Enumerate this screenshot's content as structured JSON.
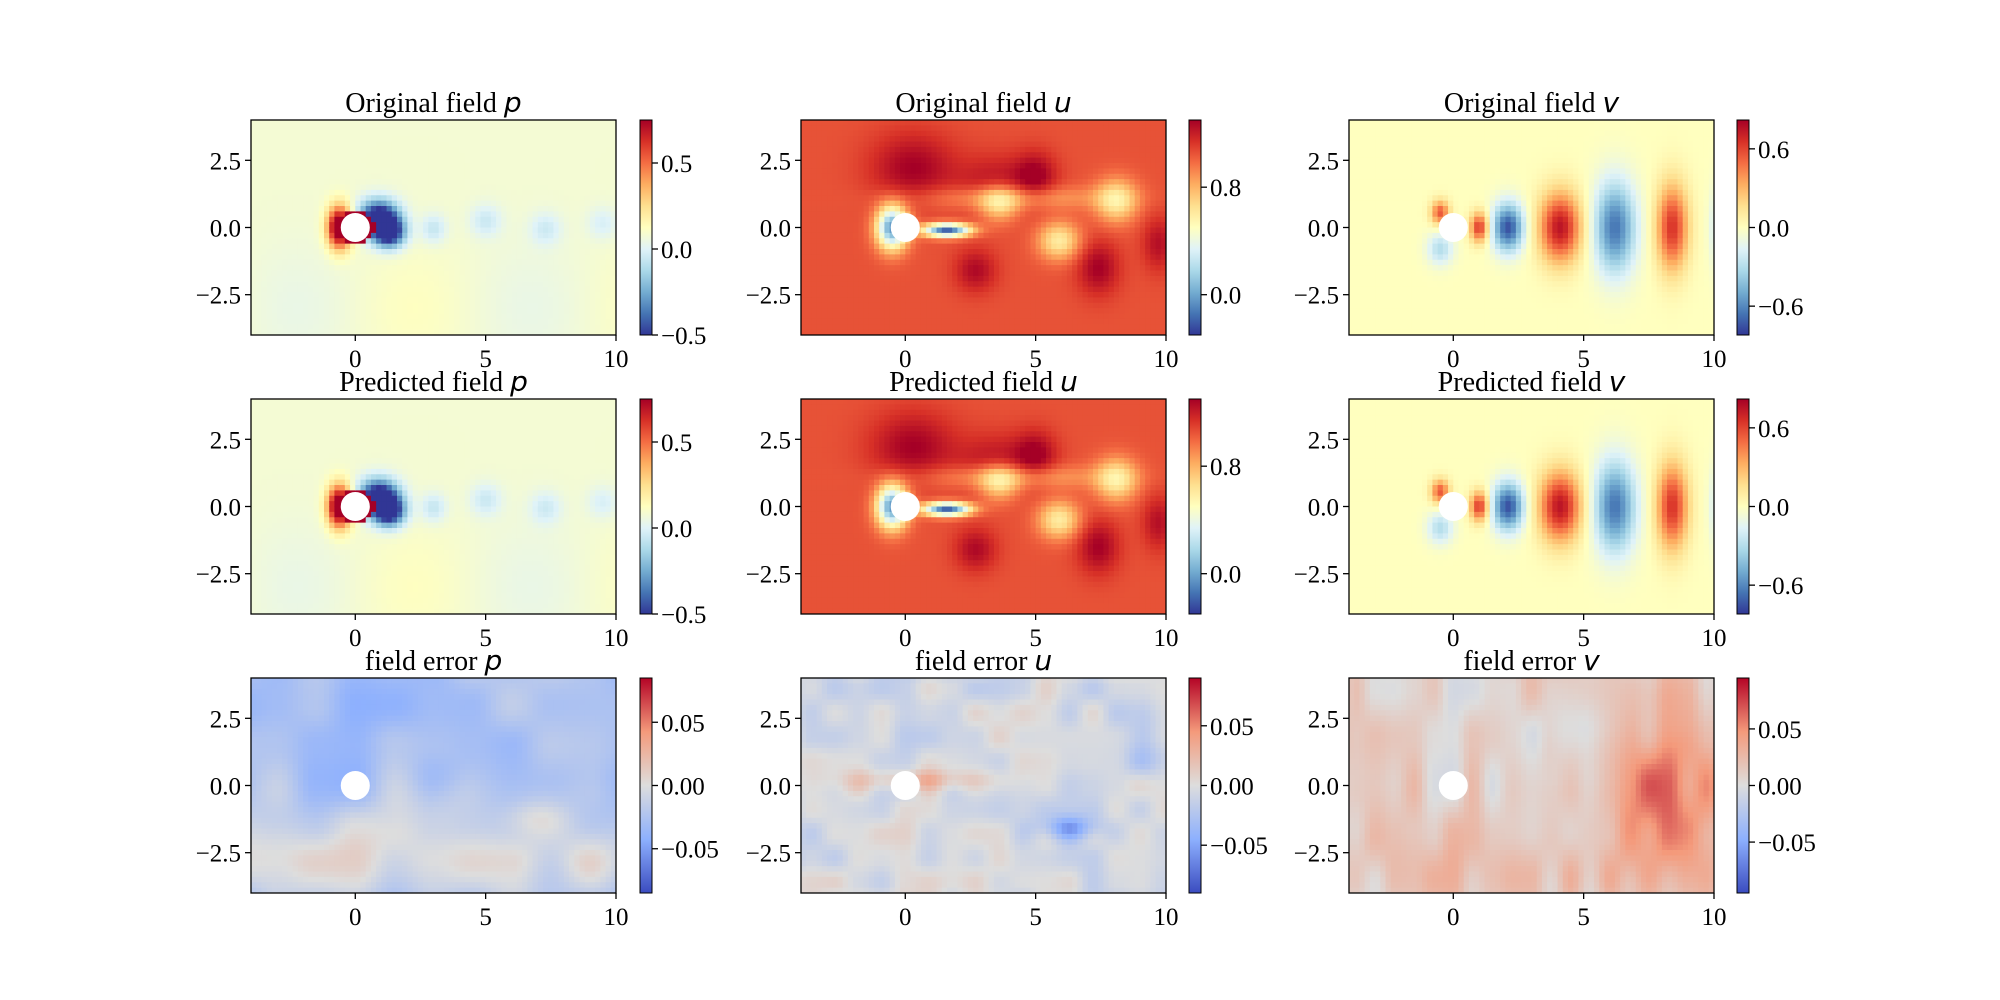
{
  "chart_data": [
    {
      "type": "heatmap",
      "field": "p",
      "title_prefix": "Original field",
      "variable": "p",
      "colormap": "RdYlBu_r",
      "xlim": [
        -4,
        10
      ],
      "ylim": [
        -4,
        4
      ],
      "xticks": [
        "0",
        "5",
        "10"
      ],
      "yticks": [
        "2.5",
        "0.0",
        "−2.5"
      ],
      "clim": [
        -0.5,
        0.75
      ],
      "colorbar_ticks": [
        {
          "v": 0.5,
          "label": "0.5"
        },
        {
          "v": 0.0,
          "label": "0.0"
        },
        {
          "v": -0.5,
          "label": "−0.5"
        }
      ]
    },
    {
      "type": "heatmap",
      "field": "u",
      "title_prefix": "Original field",
      "variable": "u",
      "colormap": "RdYlBu_r",
      "xlim": [
        -4,
        10
      ],
      "ylim": [
        -4,
        4
      ],
      "xticks": [
        "0",
        "5",
        "10"
      ],
      "yticks": [
        "2.5",
        "0.0",
        "−2.5"
      ],
      "clim": [
        -0.3,
        1.3
      ],
      "colorbar_ticks": [
        {
          "v": 0.8,
          "label": "0.8"
        },
        {
          "v": 0.0,
          "label": "0.0"
        }
      ]
    },
    {
      "type": "heatmap",
      "field": "v",
      "title_prefix": "Original field",
      "variable": "v",
      "colormap": "RdYlBu_r",
      "xlim": [
        -4,
        10
      ],
      "ylim": [
        -4,
        4
      ],
      "xticks": [
        "0",
        "5",
        "10"
      ],
      "yticks": [
        "2.5",
        "0.0",
        "−2.5"
      ],
      "clim": [
        -0.82,
        0.82
      ],
      "colorbar_ticks": [
        {
          "v": 0.6,
          "label": "0.6"
        },
        {
          "v": 0.0,
          "label": "0.0"
        },
        {
          "v": -0.6,
          "label": "−0.6"
        }
      ]
    },
    {
      "type": "heatmap",
      "field": "p",
      "title_prefix": "Predicted field",
      "variable": "p",
      "colormap": "RdYlBu_r",
      "xlim": [
        -4,
        10
      ],
      "ylim": [
        -4,
        4
      ],
      "xticks": [
        "0",
        "5",
        "10"
      ],
      "yticks": [
        "2.5",
        "0.0",
        "−2.5"
      ],
      "clim": [
        -0.5,
        0.75
      ],
      "colorbar_ticks": [
        {
          "v": 0.5,
          "label": "0.5"
        },
        {
          "v": 0.0,
          "label": "0.0"
        },
        {
          "v": -0.5,
          "label": "−0.5"
        }
      ]
    },
    {
      "type": "heatmap",
      "field": "u",
      "title_prefix": "Predicted field",
      "variable": "u",
      "colormap": "RdYlBu_r",
      "xlim": [
        -4,
        10
      ],
      "ylim": [
        -4,
        4
      ],
      "xticks": [
        "0",
        "5",
        "10"
      ],
      "yticks": [
        "2.5",
        "0.0",
        "−2.5"
      ],
      "clim": [
        -0.3,
        1.3
      ],
      "colorbar_ticks": [
        {
          "v": 0.8,
          "label": "0.8"
        },
        {
          "v": 0.0,
          "label": "0.0"
        }
      ]
    },
    {
      "type": "heatmap",
      "field": "v",
      "title_prefix": "Predicted field",
      "variable": "v",
      "colormap": "RdYlBu_r",
      "xlim": [
        -4,
        10
      ],
      "ylim": [
        -4,
        4
      ],
      "xticks": [
        "0",
        "5",
        "10"
      ],
      "yticks": [
        "2.5",
        "0.0",
        "−2.5"
      ],
      "clim": [
        -0.82,
        0.82
      ],
      "colorbar_ticks": [
        {
          "v": 0.6,
          "label": "0.6"
        },
        {
          "v": 0.0,
          "label": "0.0"
        },
        {
          "v": -0.6,
          "label": "−0.6"
        }
      ]
    },
    {
      "type": "heatmap",
      "field": "ep",
      "title_prefix": "field error",
      "variable": "p",
      "colormap": "coolwarm",
      "xlim": [
        -4,
        10
      ],
      "ylim": [
        -4,
        4
      ],
      "xticks": [
        "0",
        "5",
        "10"
      ],
      "yticks": [
        "2.5",
        "0.0",
        "−2.5"
      ],
      "clim": [
        -0.085,
        0.085
      ],
      "colorbar_ticks": [
        {
          "v": 0.05,
          "label": "0.05"
        },
        {
          "v": 0.0,
          "label": "0.00"
        },
        {
          "v": -0.05,
          "label": "−0.05"
        }
      ]
    },
    {
      "type": "heatmap",
      "field": "eu",
      "title_prefix": "field error",
      "variable": "u",
      "colormap": "coolwarm",
      "xlim": [
        -4,
        10
      ],
      "ylim": [
        -4,
        4
      ],
      "xticks": [
        "0",
        "5",
        "10"
      ],
      "yticks": [
        "2.5",
        "0.0",
        "−2.5"
      ],
      "clim": [
        -0.09,
        0.09
      ],
      "colorbar_ticks": [
        {
          "v": 0.05,
          "label": "0.05"
        },
        {
          "v": 0.0,
          "label": "0.00"
        },
        {
          "v": -0.05,
          "label": "−0.05"
        }
      ]
    },
    {
      "type": "heatmap",
      "field": "ev",
      "title_prefix": "field error",
      "variable": "v",
      "colormap": "coolwarm",
      "xlim": [
        -4,
        10
      ],
      "ylim": [
        -4,
        4
      ],
      "xticks": [
        "0",
        "5",
        "10"
      ],
      "yticks": [
        "2.5",
        "0.0",
        "−2.5"
      ],
      "clim": [
        -0.095,
        0.095
      ],
      "colorbar_ticks": [
        {
          "v": 0.05,
          "label": "0.05"
        },
        {
          "v": 0.0,
          "label": "0.00"
        },
        {
          "v": -0.05,
          "label": "−0.05"
        }
      ]
    }
  ],
  "obstacle": {
    "shape": "circle",
    "center": [
      0,
      0
    ],
    "radius": 0.5
  }
}
